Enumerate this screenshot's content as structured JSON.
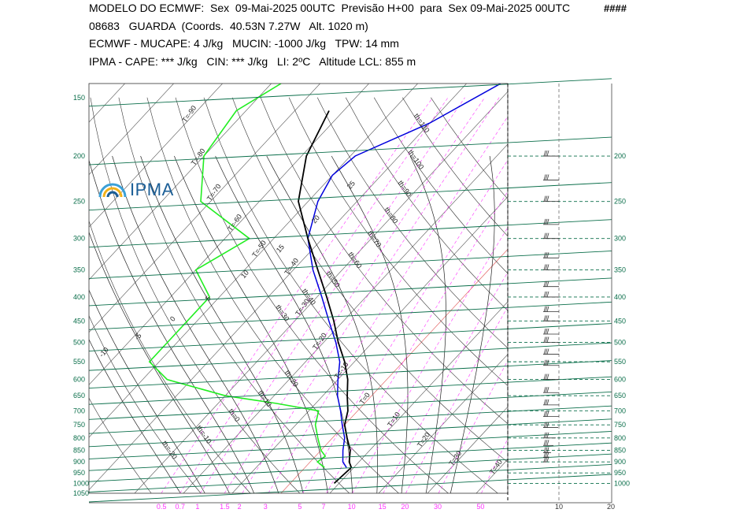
{
  "header": {
    "line1": "MODELO DO ECMWF:  Sex  09-Mai-2025 00UTC  Previsão H+00  para  Sex 09-Mai-2025 00UTC",
    "line1_flag": "####",
    "line2": "08683   GUARDA  (Coords.  40.53N 7.27W   Alt. 1020 m)",
    "line3": "ECMWF - MUCAPE: 4 J/kg   MUCIN: -1000 J/kg   TPW: 14 mm",
    "line4": "IPMA - CAPE: *** J/kg   CIN: *** J/kg   LI: 2ºC   Altitude LCL: 855 m"
  },
  "logo": {
    "text": "IPMA"
  },
  "colors": {
    "isobar": "#0a6e4a",
    "pressure_label": "#0a6e4a",
    "mixing_ratio": "#ff33ff",
    "isotherm": "#555555",
    "temperature": "#000000",
    "dewpoint": "#22ee22",
    "parcel": "#0000dd",
    "zero_isotherm": "#e05050"
  },
  "chart_data": {
    "type": "skew-t",
    "pressure_levels_left": [
      "150",
      "200",
      "250",
      "300",
      "350",
      "400",
      "450",
      "500",
      "550",
      "600",
      "650",
      "700",
      "750",
      "800",
      "850",
      "900",
      "950",
      "1000",
      "1050"
    ],
    "pressure_levels_right": [
      "200",
      "250",
      "300",
      "350",
      "400",
      "450",
      "500",
      "550",
      "600",
      "650",
      "700",
      "750",
      "800",
      "850",
      "900",
      "950",
      "1000"
    ],
    "mixing_ratio_ticks": [
      "0.5",
      "0.7",
      "1",
      "1.5",
      "2",
      "3",
      "5",
      "7",
      "10",
      "15",
      "20",
      "30",
      "50"
    ],
    "wind_axis_ticks": [
      "10",
      "20"
    ],
    "isotherm_labels": [
      "T=-90",
      "T=-80",
      "T=-70",
      "T=-60",
      "T=-50",
      "T=-40",
      "T=-30",
      "T=-20",
      "T=-10",
      "T=0",
      "T=10",
      "T=20",
      "T=30",
      "T=40"
    ],
    "dry_adiabat_labels": [
      "th=-20",
      "th=-10",
      "th=0",
      "th=10",
      "th=20",
      "th=30",
      "th=40",
      "th=50",
      "th=60",
      "th=70",
      "th=80",
      "th=90",
      "th=100",
      "th=110"
    ],
    "moist_adiabat_labels": [
      "-10",
      "-5",
      "0",
      "5",
      "10",
      "15",
      "20",
      "25"
    ],
    "temperature_profile": [
      {
        "p": 1000,
        "t": 9
      },
      {
        "p": 925,
        "t": 9.5
      },
      {
        "p": 900,
        "t": 8
      },
      {
        "p": 850,
        "t": 6
      },
      {
        "p": 800,
        "t": 3
      },
      {
        "p": 750,
        "t": 0
      },
      {
        "p": 700,
        "t": -2
      },
      {
        "p": 650,
        "t": -5
      },
      {
        "p": 600,
        "t": -8
      },
      {
        "p": 550,
        "t": -12
      },
      {
        "p": 500,
        "t": -17
      },
      {
        "p": 450,
        "t": -22
      },
      {
        "p": 400,
        "t": -28
      },
      {
        "p": 350,
        "t": -35
      },
      {
        "p": 300,
        "t": -43
      },
      {
        "p": 250,
        "t": -52
      },
      {
        "p": 200,
        "t": -59
      },
      {
        "p": 160,
        "t": -63
      }
    ],
    "parcel_profile": [
      {
        "p": 925,
        "t": 8.5
      },
      {
        "p": 900,
        "t": 6.7
      },
      {
        "p": 850,
        "t": 4.5
      },
      {
        "p": 800,
        "t": 2.5
      },
      {
        "p": 750,
        "t": -0.5
      },
      {
        "p": 700,
        "t": -3.5
      },
      {
        "p": 650,
        "t": -7
      },
      {
        "p": 600,
        "t": -10
      },
      {
        "p": 550,
        "t": -13
      },
      {
        "p": 500,
        "t": -17.5
      },
      {
        "p": 450,
        "t": -23
      },
      {
        "p": 400,
        "t": -29
      },
      {
        "p": 350,
        "t": -36
      },
      {
        "p": 300,
        "t": -43
      },
      {
        "p": 250,
        "t": -48
      },
      {
        "p": 220,
        "t": -50
      },
      {
        "p": 200,
        "t": -49
      },
      {
        "p": 170,
        "t": -40
      },
      {
        "p": 140,
        "t": -33
      }
    ],
    "dewpoint_profile": [
      {
        "p": 925,
        "t": 4
      },
      {
        "p": 900,
        "t": 1.5
      },
      {
        "p": 875,
        "t": 2
      },
      {
        "p": 850,
        "t": 0
      },
      {
        "p": 800,
        "t": -3
      },
      {
        "p": 750,
        "t": -6
      },
      {
        "p": 700,
        "t": -8
      },
      {
        "p": 675,
        "t": -18
      },
      {
        "p": 650,
        "t": -30
      },
      {
        "p": 600,
        "t": -45
      },
      {
        "p": 550,
        "t": -52
      },
      {
        "p": 500,
        "t": -52
      },
      {
        "p": 450,
        "t": -52
      },
      {
        "p": 400,
        "t": -52
      },
      {
        "p": 350,
        "t": -60
      },
      {
        "p": 300,
        "t": -55
      },
      {
        "p": 250,
        "t": -72
      },
      {
        "p": 200,
        "t": -80
      },
      {
        "p": 160,
        "t": -82
      },
      {
        "p": 140,
        "t": -78
      }
    ],
    "wind_barbs": [
      {
        "p": 200
      },
      {
        "p": 225
      },
      {
        "p": 250
      },
      {
        "p": 280
      },
      {
        "p": 300
      },
      {
        "p": 330
      },
      {
        "p": 350
      },
      {
        "p": 380
      },
      {
        "p": 400
      },
      {
        "p": 430
      },
      {
        "p": 450
      },
      {
        "p": 480
      },
      {
        "p": 500
      },
      {
        "p": 530
      },
      {
        "p": 560
      },
      {
        "p": 600
      },
      {
        "p": 640
      },
      {
        "p": 680
      },
      {
        "p": 720
      },
      {
        "p": 760
      },
      {
        "p": 800
      },
      {
        "p": 830
      },
      {
        "p": 860
      },
      {
        "p": 880
      },
      {
        "p": 900
      }
    ]
  }
}
